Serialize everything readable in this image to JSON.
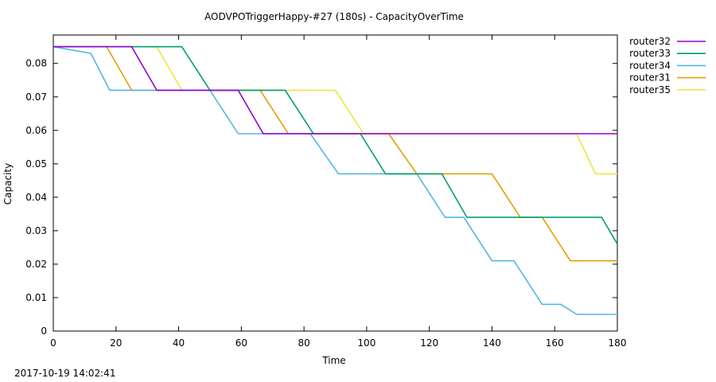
{
  "chart_data": {
    "type": "line",
    "title": "AODVPOTriggerHappy-#27 (180s) - CapacityOverTime",
    "xlabel": "Time",
    "ylabel": "Capacity",
    "xlim": [
      0,
      180
    ],
    "ylim": [
      0,
      0.0885
    ],
    "xticks": [
      0,
      20,
      40,
      60,
      80,
      100,
      120,
      140,
      160,
      180
    ],
    "yticks": [
      0,
      0.01,
      0.02,
      0.03,
      0.04,
      0.05,
      0.06,
      0.07,
      0.08
    ],
    "ytick_labels": [
      "0",
      "0.01",
      "0.02",
      "0.03",
      "0.04",
      "0.05",
      "0.06",
      "0.07",
      "0.08"
    ],
    "grid": false,
    "legend_position": "outside-right-top",
    "series": [
      {
        "name": "router32",
        "color": "#9400d3",
        "points": [
          [
            0,
            0.085
          ],
          [
            25,
            0.085
          ],
          [
            33,
            0.072
          ],
          [
            59,
            0.072
          ],
          [
            67,
            0.059
          ],
          [
            168,
            0.059
          ],
          [
            180,
            0.059
          ]
        ]
      },
      {
        "name": "router33",
        "color": "#009e73",
        "points": [
          [
            0,
            0.085
          ],
          [
            41,
            0.085
          ],
          [
            50,
            0.072
          ],
          [
            74,
            0.072
          ],
          [
            83,
            0.059
          ],
          [
            98,
            0.059
          ],
          [
            106,
            0.047
          ],
          [
            124,
            0.047
          ],
          [
            132,
            0.034
          ],
          [
            175,
            0.034
          ],
          [
            180,
            0.026
          ]
        ]
      },
      {
        "name": "router34",
        "color": "#56b4e9",
        "points": [
          [
            0,
            0.085
          ],
          [
            12,
            0.083
          ],
          [
            18,
            0.072
          ],
          [
            50,
            0.072
          ],
          [
            59,
            0.059
          ],
          [
            82,
            0.059
          ],
          [
            91,
            0.047
          ],
          [
            116,
            0.047
          ],
          [
            125,
            0.034
          ],
          [
            131,
            0.034
          ],
          [
            140,
            0.021
          ],
          [
            147,
            0.021
          ],
          [
            156,
            0.008
          ],
          [
            162,
            0.008
          ],
          [
            167,
            0.005
          ],
          [
            180,
            0.005
          ]
        ]
      },
      {
        "name": "router31",
        "color": "#e69f00",
        "points": [
          [
            0,
            0.085
          ],
          [
            17,
            0.085
          ],
          [
            25,
            0.072
          ],
          [
            66,
            0.072
          ],
          [
            75,
            0.059
          ],
          [
            107,
            0.059
          ],
          [
            116,
            0.047
          ],
          [
            140,
            0.047
          ],
          [
            149,
            0.034
          ],
          [
            156,
            0.034
          ],
          [
            165,
            0.021
          ],
          [
            180,
            0.021
          ]
        ]
      },
      {
        "name": "router35",
        "color": "#f0e442",
        "points": [
          [
            0,
            0.085
          ],
          [
            33,
            0.085
          ],
          [
            41,
            0.072
          ],
          [
            90,
            0.072
          ],
          [
            99,
            0.059
          ],
          [
            167,
            0.059
          ],
          [
            173,
            0.047
          ],
          [
            180,
            0.047
          ]
        ]
      }
    ]
  },
  "footer": {
    "timestamp": "2017-10-19 14:02:41"
  }
}
